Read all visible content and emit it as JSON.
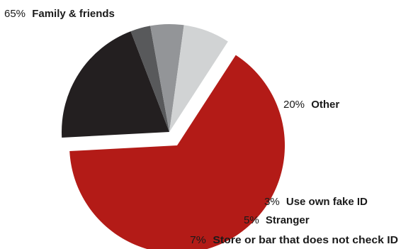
{
  "chart_data": {
    "type": "pie",
    "title": "",
    "slices": [
      {
        "label": "Family & friends",
        "value": 65,
        "value_label": "65%",
        "color": "#b31b17",
        "exploded": true
      },
      {
        "label": "Other",
        "value": 20,
        "value_label": "20%",
        "color": "#231f20",
        "exploded": false
      },
      {
        "label": "Use own fake ID",
        "value": 3,
        "value_label": "3%",
        "color": "#58595b",
        "exploded": false
      },
      {
        "label": "Stranger",
        "value": 5,
        "value_label": "5%",
        "color": "#939598",
        "exploded": false
      },
      {
        "label": "Store or bar that does not check ID",
        "value": 7,
        "value_label": "7%",
        "color": "#d1d3d4",
        "exploded": false
      }
    ]
  }
}
